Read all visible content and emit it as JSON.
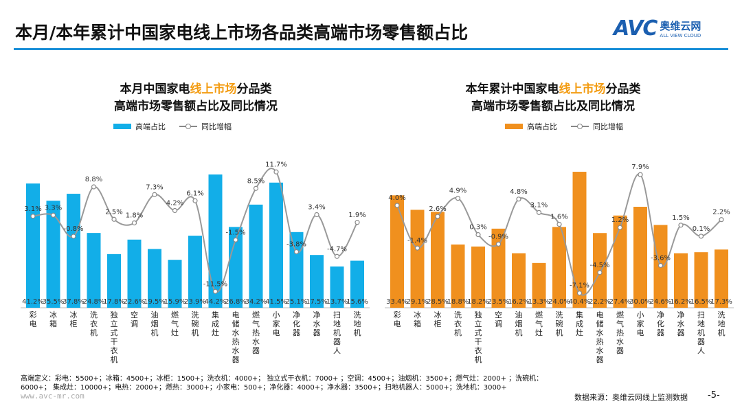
{
  "header": {
    "title": "本月/本年累计中国家电线上市场各品类高端市场零售额占比",
    "logo_text": "AVC",
    "logo_cn": "奥维云网",
    "logo_en": "ALL VIEW CLOUD"
  },
  "chart_data": [
    {
      "type": "bar+line",
      "title_pre": "本月中国家电",
      "title_hl": "线上市场",
      "title_post": "分品类",
      "title_line2": "高端市场零售额占比及同比情况",
      "legend": [
        "高端占比",
        "同比增幅"
      ],
      "bar_color": "#12aee8",
      "categories": [
        "彩电",
        "冰箱",
        "冰柜",
        "洗衣机",
        "独立式干衣机",
        "空调",
        "油烟机",
        "燃气灶",
        "洗碗机",
        "集成灶",
        "电储水热水器",
        "燃气热水器",
        "小家电",
        "净化器",
        "净水器",
        "扫地机器人",
        "洗地机"
      ],
      "series": [
        {
          "name": "高端占比",
          "unit": "%",
          "values": [
            41.2,
            35.5,
            37.8,
            24.8,
            17.8,
            22.6,
            19.5,
            15.9,
            23.9,
            44.2,
            26.8,
            34.2,
            41.5,
            25.1,
            17.5,
            13.7,
            15.6
          ]
        },
        {
          "name": "同比增幅",
          "unit": "%",
          "values": [
            3.1,
            3.3,
            -0.8,
            8.8,
            2.5,
            1.8,
            7.3,
            4.2,
            6.1,
            -11.5,
            -1.5,
            8.5,
            11.7,
            -3.8,
            3.4,
            -4.7,
            1.9
          ]
        }
      ]
    },
    {
      "type": "bar+line",
      "title_pre": "本年累计中国家电",
      "title_hl": "线上市场",
      "title_post": "分品类",
      "title_line2": "高端市场零售额占比及同比情况",
      "legend": [
        "高端占比",
        "同比增幅"
      ],
      "bar_color": "#f0901e",
      "categories": [
        "彩电",
        "冰箱",
        "冰柜",
        "洗衣机",
        "独立式干衣机",
        "空调",
        "油烟机",
        "燃气灶",
        "洗碗机",
        "集成灶",
        "电储水热水器",
        "燃气热水器",
        "小家电",
        "净化器",
        "净水器",
        "扫地机器人",
        "洗地机"
      ],
      "series": [
        {
          "name": "高端占比",
          "unit": "%",
          "values": [
            33.4,
            29.1,
            28.5,
            18.8,
            18.2,
            23.5,
            16.2,
            13.3,
            24.0,
            40.4,
            22.2,
            27.4,
            30.0,
            24.6,
            16.2,
            16.5,
            17.3
          ]
        },
        {
          "name": "同比增幅",
          "unit": "%",
          "values": [
            4.0,
            -1.4,
            2.6,
            4.9,
            0.3,
            -0.9,
            4.8,
            3.1,
            1.6,
            -7.1,
            -4.5,
            1.2,
            7.9,
            -3.6,
            1.5,
            0.1,
            2.2
          ]
        }
      ]
    }
  ],
  "footer": {
    "note1": "高端定义：彩电：5500+；冰箱：4500+；冰柜：1500+；洗衣机：4000+；  独立式干衣机：7000+ ；空调：4500+；油烟机：3500+；燃气灶：2000+ ；洗碗机：",
    "note2": "6000+；  集成灶：10000+；电热：2000+；燃热：3000+；小家电：500+；净化器：4000+；净水器：3500+；扫地机器人：5000+；洗地机：3000+",
    "url": "www.avc-mr.com",
    "source": "数据来源：奥维云网线上监测数据",
    "page": "-5-"
  }
}
